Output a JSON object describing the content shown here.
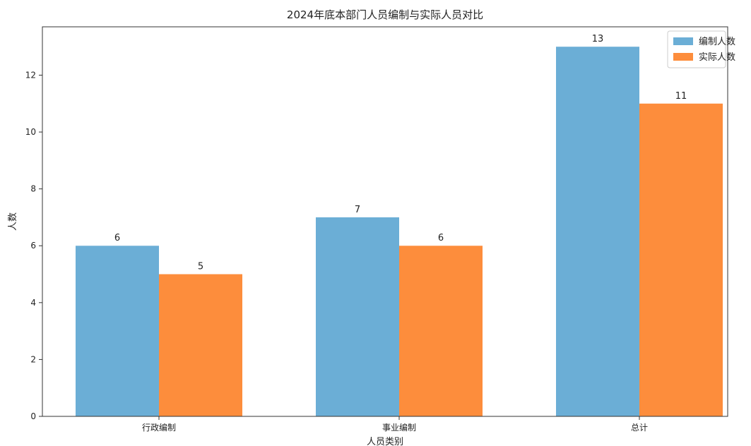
{
  "chart_data": {
    "type": "bar",
    "title": "2024年底本部门人员编制与实际人员对比",
    "xlabel": "人员类别",
    "ylabel": "人数",
    "categories": [
      "行政编制",
      "事业编制",
      "总计"
    ],
    "series": [
      {
        "name": "编制人数",
        "values": [
          6,
          7,
          13
        ],
        "color": "#6baed6"
      },
      {
        "name": "实际人数",
        "values": [
          5,
          6,
          11
        ],
        "color": "#fd8d3c"
      }
    ],
    "ylim": [
      0,
      13.7
    ],
    "yticks": [
      0,
      2,
      4,
      6,
      8,
      10,
      12
    ],
    "grid": false,
    "legend_position": "top-right",
    "data_labels": true
  }
}
